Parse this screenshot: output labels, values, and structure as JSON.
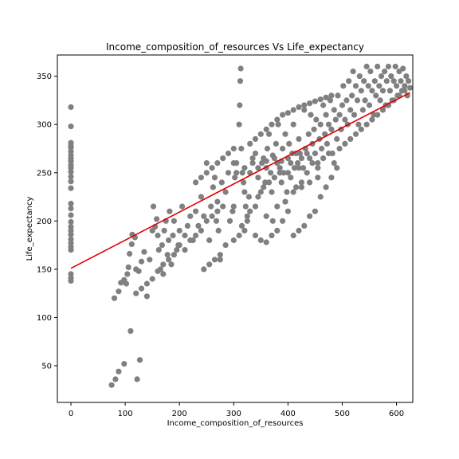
{
  "chart_data": {
    "type": "scatter",
    "title": "Income_composition_of_resources Vs Life_expectancy",
    "xlabel": "Income_composition_of_resources",
    "ylabel": "Life_expectancy",
    "xlim": [
      -25,
      630
    ],
    "ylim": [
      12,
      372
    ],
    "xticks": [
      0,
      100,
      200,
      300,
      400,
      500,
      600
    ],
    "yticks": [
      50,
      100,
      150,
      200,
      250,
      300,
      350
    ],
    "grid": false,
    "point_color": "#808080",
    "line_color": "#e00000",
    "fit_line": {
      "x": [
        0,
        625
      ],
      "y": [
        151,
        333
      ]
    },
    "points": [
      [
        0,
        318
      ],
      [
        0,
        298
      ],
      [
        0,
        281
      ],
      [
        0,
        278
      ],
      [
        0,
        276
      ],
      [
        0,
        272
      ],
      [
        0,
        268
      ],
      [
        0,
        265
      ],
      [
        0,
        262
      ],
      [
        0,
        258
      ],
      [
        0,
        255
      ],
      [
        0,
        251
      ],
      [
        0,
        246
      ],
      [
        0,
        241
      ],
      [
        0,
        234
      ],
      [
        0,
        218
      ],
      [
        0,
        213
      ],
      [
        0,
        206
      ],
      [
        0,
        199
      ],
      [
        0,
        194
      ],
      [
        0,
        190
      ],
      [
        0,
        186
      ],
      [
        0,
        181
      ],
      [
        0,
        177
      ],
      [
        0,
        173
      ],
      [
        0,
        170
      ],
      [
        0,
        145
      ],
      [
        0,
        141
      ],
      [
        0,
        138
      ],
      [
        75,
        30
      ],
      [
        82,
        36
      ],
      [
        88,
        44
      ],
      [
        98,
        52
      ],
      [
        122,
        36
      ],
      [
        127,
        56
      ],
      [
        110,
        86
      ],
      [
        80,
        120
      ],
      [
        88,
        127
      ],
      [
        92,
        136
      ],
      [
        98,
        139
      ],
      [
        102,
        135
      ],
      [
        104,
        145
      ],
      [
        106,
        152
      ],
      [
        108,
        166
      ],
      [
        112,
        176
      ],
      [
        113,
        186
      ],
      [
        118,
        183
      ],
      [
        120,
        150
      ],
      [
        125,
        148
      ],
      [
        130,
        158
      ],
      [
        135,
        168
      ],
      [
        140,
        122
      ],
      [
        145,
        160
      ],
      [
        150,
        190
      ],
      [
        152,
        215
      ],
      [
        155,
        194
      ],
      [
        158,
        202
      ],
      [
        160,
        185
      ],
      [
        162,
        170
      ],
      [
        165,
        150
      ],
      [
        168,
        175
      ],
      [
        170,
        145
      ],
      [
        172,
        190
      ],
      [
        175,
        200
      ],
      [
        178,
        165
      ],
      [
        180,
        180
      ],
      [
        182,
        210
      ],
      [
        185,
        155
      ],
      [
        188,
        185
      ],
      [
        190,
        200
      ],
      [
        195,
        170
      ],
      [
        198,
        175
      ],
      [
        200,
        190
      ],
      [
        205,
        215
      ],
      [
        210,
        185
      ],
      [
        215,
        195
      ],
      [
        220,
        205
      ],
      [
        225,
        180
      ],
      [
        230,
        210
      ],
      [
        235,
        195
      ],
      [
        240,
        225
      ],
      [
        245,
        205
      ],
      [
        250,
        260
      ],
      [
        255,
        180
      ],
      [
        258,
        215
      ],
      [
        262,
        235
      ],
      [
        265,
        245
      ],
      [
        268,
        200
      ],
      [
        270,
        220
      ],
      [
        272,
        190
      ],
      [
        275,
        160
      ],
      [
        278,
        240
      ],
      [
        280,
        215
      ],
      [
        285,
        230
      ],
      [
        290,
        250
      ],
      [
        293,
        200
      ],
      [
        298,
        210
      ],
      [
        300,
        215
      ],
      [
        302,
        245
      ],
      [
        305,
        260
      ],
      [
        310,
        300
      ],
      [
        311,
        320
      ],
      [
        312,
        345
      ],
      [
        313,
        358
      ],
      [
        314,
        275
      ],
      [
        316,
        250
      ],
      [
        318,
        240
      ],
      [
        320,
        230
      ],
      [
        322,
        215
      ],
      [
        325,
        200
      ],
      [
        328,
        225
      ],
      [
        330,
        250
      ],
      [
        335,
        260
      ],
      [
        340,
        270
      ],
      [
        345,
        245
      ],
      [
        350,
        230
      ],
      [
        352,
        260
      ],
      [
        355,
        265
      ],
      [
        358,
        240
      ],
      [
        360,
        255
      ],
      [
        362,
        275
      ],
      [
        365,
        290
      ],
      [
        368,
        250
      ],
      [
        370,
        230
      ],
      [
        372,
        200
      ],
      [
        375,
        265
      ],
      [
        378,
        280
      ],
      [
        380,
        260
      ],
      [
        382,
        300
      ],
      [
        385,
        255
      ],
      [
        388,
        240
      ],
      [
        390,
        275
      ],
      [
        392,
        250
      ],
      [
        395,
        290
      ],
      [
        398,
        230
      ],
      [
        400,
        265
      ],
      [
        402,
        280
      ],
      [
        405,
        245
      ],
      [
        408,
        270
      ],
      [
        410,
        300
      ],
      [
        412,
        255
      ],
      [
        415,
        235
      ],
      [
        418,
        260
      ],
      [
        420,
        285
      ],
      [
        422,
        270
      ],
      [
        425,
        240
      ],
      [
        428,
        255
      ],
      [
        430,
        315
      ],
      [
        432,
        275
      ],
      [
        435,
        250
      ],
      [
        438,
        290
      ],
      [
        440,
        265
      ],
      [
        442,
        310
      ],
      [
        445,
        280
      ],
      [
        448,
        295
      ],
      [
        450,
        270
      ],
      [
        452,
        305
      ],
      [
        455,
        260
      ],
      [
        458,
        285
      ],
      [
        460,
        300
      ],
      [
        462,
        275
      ],
      [
        465,
        320
      ],
      [
        468,
        290
      ],
      [
        470,
        310
      ],
      [
        472,
        280
      ],
      [
        475,
        300
      ],
      [
        478,
        325
      ],
      [
        480,
        295
      ],
      [
        482,
        270
      ],
      [
        485,
        315
      ],
      [
        488,
        305
      ],
      [
        490,
        285
      ],
      [
        492,
        330
      ],
      [
        495,
        310
      ],
      [
        498,
        295
      ],
      [
        500,
        320
      ],
      [
        502,
        340
      ],
      [
        505,
        305
      ],
      [
        508,
        325
      ],
      [
        510,
        300
      ],
      [
        512,
        345
      ],
      [
        515,
        315
      ],
      [
        518,
        330
      ],
      [
        520,
        355
      ],
      [
        522,
        310
      ],
      [
        525,
        340
      ],
      [
        528,
        325
      ],
      [
        530,
        300
      ],
      [
        532,
        350
      ],
      [
        535,
        335
      ],
      [
        538,
        315
      ],
      [
        540,
        345
      ],
      [
        542,
        325
      ],
      [
        545,
        360
      ],
      [
        548,
        340
      ],
      [
        550,
        320
      ],
      [
        552,
        355
      ],
      [
        555,
        335
      ],
      [
        558,
        310
      ],
      [
        560,
        345
      ],
      [
        562,
        330
      ],
      [
        565,
        360
      ],
      [
        568,
        340
      ],
      [
        570,
        325
      ],
      [
        572,
        350
      ],
      [
        575,
        335
      ],
      [
        578,
        355
      ],
      [
        580,
        320
      ],
      [
        582,
        345
      ],
      [
        585,
        360
      ],
      [
        588,
        335
      ],
      [
        590,
        350
      ],
      [
        592,
        325
      ],
      [
        595,
        345
      ],
      [
        598,
        360
      ],
      [
        600,
        340
      ],
      [
        602,
        330
      ],
      [
        605,
        355
      ],
      [
        608,
        345
      ],
      [
        610,
        335
      ],
      [
        612,
        358
      ],
      [
        615,
        340
      ],
      [
        618,
        350
      ],
      [
        620,
        330
      ],
      [
        622,
        345
      ],
      [
        625,
        338
      ],
      [
        340,
        185
      ],
      [
        350,
        180
      ],
      [
        360,
        178
      ],
      [
        370,
        185
      ],
      [
        380,
        190
      ],
      [
        390,
        200
      ],
      [
        400,
        210
      ],
      [
        410,
        185
      ],
      [
        420,
        190
      ],
      [
        430,
        195
      ],
      [
        440,
        205
      ],
      [
        450,
        210
      ],
      [
        460,
        225
      ],
      [
        470,
        235
      ],
      [
        480,
        245
      ],
      [
        490,
        255
      ],
      [
        340,
        215
      ],
      [
        360,
        205
      ],
      [
        380,
        215
      ],
      [
        395,
        220
      ],
      [
        410,
        230
      ],
      [
        425,
        235
      ],
      [
        440,
        240
      ],
      [
        455,
        245
      ],
      [
        300,
        180
      ],
      [
        310,
        185
      ],
      [
        320,
        190
      ],
      [
        285,
        175
      ],
      [
        275,
        165
      ],
      [
        265,
        160
      ],
      [
        255,
        155
      ],
      [
        245,
        150
      ],
      [
        315,
        195
      ],
      [
        330,
        210
      ],
      [
        325,
        205
      ],
      [
        345,
        225
      ],
      [
        355,
        235
      ],
      [
        365,
        240
      ],
      [
        375,
        245
      ],
      [
        385,
        250
      ],
      [
        200,
        175
      ],
      [
        210,
        170
      ],
      [
        220,
        180
      ],
      [
        230,
        185
      ],
      [
        240,
        190
      ],
      [
        250,
        200
      ],
      [
        260,
        205
      ],
      [
        270,
        210
      ],
      [
        180,
        160
      ],
      [
        190,
        165
      ],
      [
        170,
        155
      ],
      [
        160,
        148
      ],
      [
        150,
        140
      ],
      [
        140,
        135
      ],
      [
        130,
        130
      ],
      [
        120,
        125
      ],
      [
        230,
        240
      ],
      [
        240,
        245
      ],
      [
        250,
        250
      ],
      [
        260,
        255
      ],
      [
        270,
        260
      ],
      [
        280,
        265
      ],
      [
        290,
        270
      ],
      [
        300,
        275
      ],
      [
        330,
        280
      ],
      [
        340,
        285
      ],
      [
        350,
        290
      ],
      [
        360,
        295
      ],
      [
        370,
        300
      ],
      [
        380,
        305
      ],
      [
        390,
        310
      ],
      [
        400,
        312
      ],
      [
        410,
        315
      ],
      [
        420,
        318
      ],
      [
        430,
        320
      ],
      [
        440,
        322
      ],
      [
        450,
        324
      ],
      [
        460,
        326
      ],
      [
        470,
        328
      ],
      [
        480,
        330
      ],
      [
        400,
        250
      ],
      [
        405,
        260
      ],
      [
        415,
        270
      ],
      [
        420,
        255
      ],
      [
        425,
        265
      ],
      [
        435,
        270
      ],
      [
        445,
        260
      ],
      [
        455,
        255
      ],
      [
        465,
        265
      ],
      [
        475,
        270
      ],
      [
        485,
        260
      ],
      [
        495,
        275
      ],
      [
        505,
        280
      ],
      [
        515,
        285
      ],
      [
        525,
        290
      ],
      [
        535,
        295
      ],
      [
        545,
        300
      ],
      [
        555,
        305
      ],
      [
        565,
        310
      ],
      [
        575,
        315
      ],
      [
        585,
        320
      ],
      [
        595,
        325
      ],
      [
        605,
        330
      ],
      [
        615,
        335
      ],
      [
        300,
        260
      ],
      [
        305,
        250
      ],
      [
        320,
        255
      ],
      [
        335,
        265
      ],
      [
        345,
        255
      ],
      [
        360,
        262
      ],
      [
        372,
        268
      ],
      [
        388,
        262
      ]
    ]
  }
}
